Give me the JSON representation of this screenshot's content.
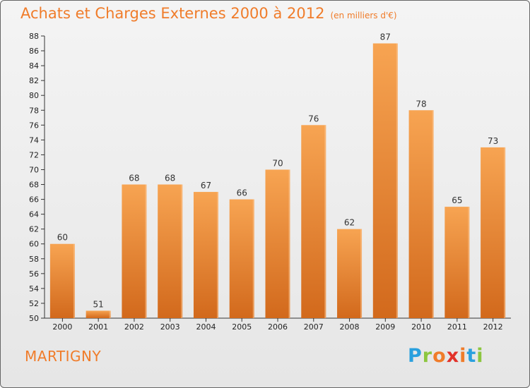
{
  "header": {
    "title": "Achats et Charges Externes 2000 à 2012",
    "unit": "(en milliers d'€)"
  },
  "footer": {
    "town": "MARTIGNY",
    "logo_letters": [
      "P",
      "r",
      "o",
      "x",
      "i",
      "t",
      "i"
    ],
    "logo_colors": [
      "#2aa0de",
      "#8cc63f",
      "#f07c2a",
      "#e2322a",
      "#f07c2a",
      "#2aa0de",
      "#8cc63f"
    ]
  },
  "chart_data": {
    "type": "bar",
    "title": "Achats et Charges Externes 2000 à 2012",
    "subtitle": "(en milliers d'€)",
    "xlabel": "",
    "ylabel": "",
    "categories": [
      "2000",
      "2001",
      "2002",
      "2003",
      "2004",
      "2005",
      "2006",
      "2007",
      "2008",
      "2009",
      "2010",
      "2011",
      "2012"
    ],
    "values": [
      60,
      51,
      68,
      68,
      67,
      66,
      70,
      76,
      62,
      87,
      78,
      65,
      73
    ],
    "ylim": [
      50,
      88
    ],
    "yticks": [
      50,
      52,
      54,
      56,
      58,
      60,
      62,
      64,
      66,
      68,
      70,
      72,
      74,
      76,
      78,
      80,
      82,
      84,
      86,
      88
    ],
    "grid": false,
    "bar_color_top": "#f7a452",
    "bar_color_bottom": "#d2691c"
  }
}
